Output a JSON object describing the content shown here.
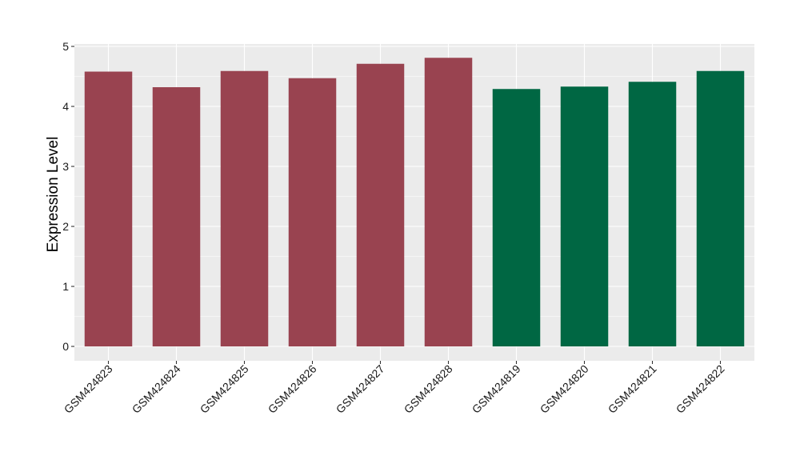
{
  "chart_data": {
    "type": "bar",
    "title": "",
    "xlabel": "",
    "ylabel": "Expression Level",
    "ylim": [
      -0.24,
      5.04
    ],
    "yticks": [
      0,
      1,
      2,
      3,
      4,
      5
    ],
    "grid": true,
    "categories": [
      "GSM424823",
      "GSM424824",
      "GSM424825",
      "GSM424826",
      "GSM424827",
      "GSM424828",
      "GSM424819",
      "GSM424820",
      "GSM424821",
      "GSM424822"
    ],
    "values": [
      4.58,
      4.32,
      4.59,
      4.47,
      4.71,
      4.81,
      4.29,
      4.33,
      4.41,
      4.59
    ],
    "bar_colors": [
      "#994350",
      "#994350",
      "#994350",
      "#994350",
      "#994350",
      "#994350",
      "#006743",
      "#006743",
      "#006743",
      "#006743"
    ],
    "panel_background": "#ebebeb",
    "grid_color": "#ffffff"
  }
}
